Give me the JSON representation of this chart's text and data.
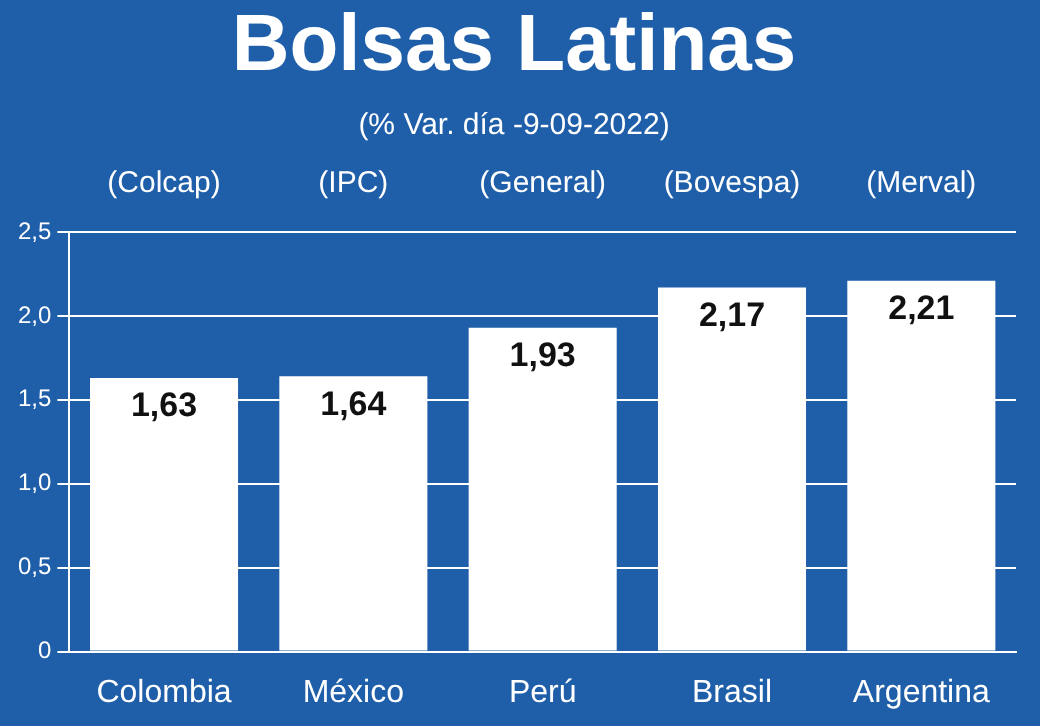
{
  "chart_data": {
    "type": "bar",
    "title": "Bolsas Latinas",
    "subtitle": "(% Var. día -9-09-2022)",
    "categories": [
      "Colombia",
      "México",
      "Perú",
      "Brasil",
      "Argentina"
    ],
    "values": [
      1.63,
      1.64,
      1.93,
      2.17,
      2.21
    ],
    "value_labels": [
      "1,63",
      "1,64",
      "1,93",
      "2,17",
      "2,21"
    ],
    "color": "#ffffff",
    "ylim": [
      0,
      2.5
    ],
    "yticks": [
      {
        "value": 0,
        "label": "0"
      },
      {
        "value": 0.5,
        "label": "0,5"
      },
      {
        "value": 1,
        "label": "1,0"
      },
      {
        "value": 1.5,
        "label": "1,5"
      },
      {
        "value": 2,
        "label": "2,0"
      },
      {
        "value": 2.5,
        "label": "2,5"
      }
    ],
    "grid": "y",
    "legend": false,
    "annotations": [
      "(Colcap)",
      "(IPC)",
      "(General)",
      "(Bovespa)",
      "(Merval)"
    ]
  }
}
